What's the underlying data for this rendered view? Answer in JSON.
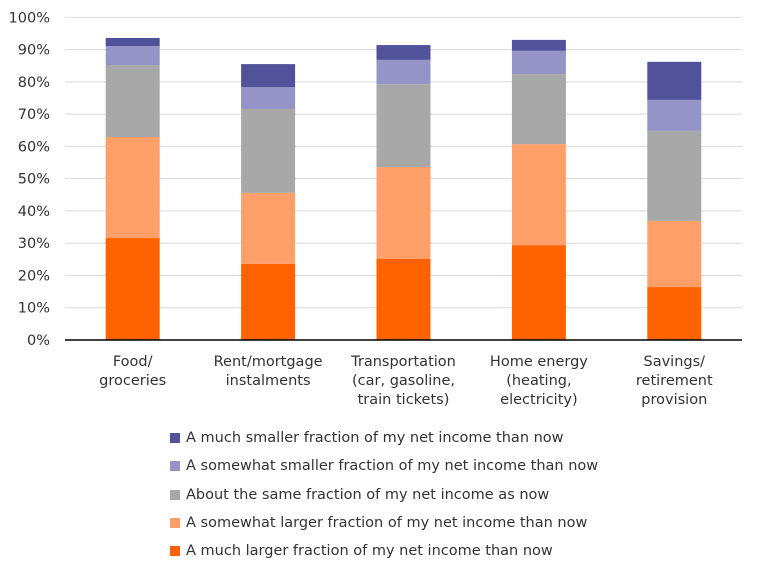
{
  "chart_data": {
    "type": "bar",
    "stacked": true,
    "categories": [
      [
        "Food/",
        "groceries"
      ],
      [
        "Rent/mortgage",
        "instalments"
      ],
      [
        "Transportation",
        "(car, gasoline,",
        "train tickets)"
      ],
      [
        "Home energy",
        "(heating,",
        "electricity)"
      ],
      [
        "Savings/",
        "retirement",
        "provision"
      ]
    ],
    "series": [
      {
        "name": "A much larger fraction of my net income than now",
        "color": "#FF6200",
        "values": [
          31.6,
          23.6,
          25.1,
          29.4,
          16.4
        ]
      },
      {
        "name": "A somewhat larger fraction of my net income than now",
        "color": "#FFA06A",
        "values": [
          31.3,
          22.0,
          28.5,
          31.3,
          20.5
        ]
      },
      {
        "name": "About the same fraction of my net income as now",
        "color": "#A8A8A8",
        "values": [
          22.3,
          26.0,
          25.7,
          21.7,
          27.9
        ]
      },
      {
        "name": "A somewhat smaller fraction of my net income than now",
        "color": "#9494C6",
        "values": [
          5.9,
          6.8,
          7.5,
          7.2,
          9.6
        ]
      },
      {
        "name": "A much smaller fraction of my net income than now",
        "color": "#52529B",
        "values": [
          2.5,
          7.1,
          4.6,
          3.4,
          11.8
        ]
      }
    ],
    "ylim": [
      0,
      100
    ],
    "yticks": [
      "0%",
      "10%",
      "20%",
      "30%",
      "40%",
      "50%",
      "60%",
      "70%",
      "80%",
      "90%",
      "100%"
    ],
    "grid": true,
    "legend_placement": "bottom",
    "legend_order": "reversed"
  }
}
